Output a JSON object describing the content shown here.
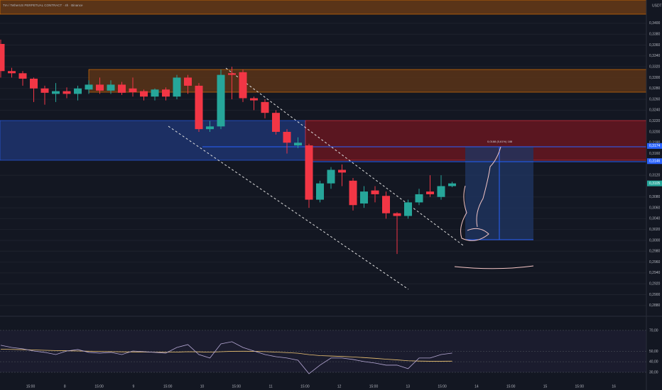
{
  "chart_data": {
    "type": "candlestick",
    "title": "TIA / TetherUS PERPETUAL CONTRACT · 4h · Binance",
    "currency": "USDT",
    "up_color": "#26a69a",
    "down_color": "#f23645",
    "open": [
      0.3362,
      0.3312,
      0.3308,
      0.3298,
      0.328,
      0.327,
      0.3275,
      0.327,
      0.3278,
      0.3287,
      0.3276,
      0.3287,
      0.328,
      0.3275,
      0.3265,
      0.3278,
      0.3265,
      0.33,
      0.3285,
      0.3205,
      0.321,
      0.3308,
      0.331,
      0.3262,
      0.3255,
      0.3235,
      0.32,
      0.3175,
      0.3175,
      0.3075,
      0.3105,
      0.313,
      0.311,
      0.3068,
      0.3092,
      0.3082,
      0.305,
      0.3045,
      0.307,
      0.309,
      0.308,
      0.31
    ],
    "high": [
      0.337,
      0.3318,
      0.3312,
      0.33,
      0.3285,
      0.329,
      0.3282,
      0.3285,
      0.3295,
      0.33,
      0.3295,
      0.3292,
      0.33,
      0.3278,
      0.328,
      0.3282,
      0.3305,
      0.3305,
      0.329,
      0.322,
      0.3315,
      0.332,
      0.3315,
      0.3265,
      0.326,
      0.324,
      0.3205,
      0.319,
      0.3178,
      0.311,
      0.3135,
      0.314,
      0.3115,
      0.31,
      0.31,
      0.309,
      0.3052,
      0.3075,
      0.3095,
      0.312,
      0.312,
      0.3108
    ],
    "low": [
      0.33,
      0.33,
      0.3285,
      0.3255,
      0.325,
      0.3255,
      0.3262,
      0.3258,
      0.327,
      0.327,
      0.327,
      0.3268,
      0.3265,
      0.3258,
      0.3258,
      0.3258,
      0.326,
      0.327,
      0.32,
      0.32,
      0.3205,
      0.326,
      0.3255,
      0.324,
      0.3225,
      0.3195,
      0.316,
      0.317,
      0.306,
      0.307,
      0.3095,
      0.31,
      0.3055,
      0.306,
      0.307,
      0.304,
      0.2975,
      0.304,
      0.3065,
      0.308,
      0.3075,
      0.3098
    ],
    "close": [
      0.3312,
      0.3308,
      0.3298,
      0.328,
      0.3272,
      0.3275,
      0.327,
      0.328,
      0.3287,
      0.3276,
      0.3287,
      0.3272,
      0.3273,
      0.3265,
      0.3278,
      0.3265,
      0.33,
      0.3285,
      0.3205,
      0.321,
      0.3305,
      0.3305,
      0.3262,
      0.3258,
      0.3235,
      0.32,
      0.318,
      0.318,
      0.3075,
      0.3105,
      0.313,
      0.3125,
      0.3065,
      0.309,
      0.3085,
      0.305,
      0.3045,
      0.307,
      0.3085,
      0.3085,
      0.31,
      0.3105
    ],
    "ylim": [
      0.2868,
      0.3443
    ],
    "yticks": [
      {
        "value": 0.288,
        "label": "0,2880"
      },
      {
        "value": 0.29,
        "label": "0,2900"
      },
      {
        "value": 0.292,
        "label": "0,2920"
      },
      {
        "value": 0.294,
        "label": "0,2940"
      },
      {
        "value": 0.296,
        "label": "0,2960"
      },
      {
        "value": 0.298,
        "label": "0,2980"
      },
      {
        "value": 0.3,
        "label": "0,3000"
      },
      {
        "value": 0.302,
        "label": "0,3020"
      },
      {
        "value": 0.304,
        "label": "0,3040"
      },
      {
        "value": 0.306,
        "label": "0,3060"
      },
      {
        "value": 0.308,
        "label": "0,3080"
      },
      {
        "value": 0.312,
        "label": "0,3120"
      },
      {
        "value": 0.316,
        "label": "0,3160"
      },
      {
        "value": 0.318,
        "label": "0,3180"
      },
      {
        "value": 0.32,
        "label": "0,3200"
      },
      {
        "value": 0.322,
        "label": "0,3220"
      },
      {
        "value": 0.324,
        "label": "0,3240"
      },
      {
        "value": 0.326,
        "label": "0,3260"
      },
      {
        "value": 0.328,
        "label": "0,3280"
      },
      {
        "value": 0.33,
        "label": "0,3300"
      },
      {
        "value": 0.332,
        "label": "0,3320"
      },
      {
        "value": 0.334,
        "label": "0,3340"
      },
      {
        "value": 0.336,
        "label": "0,3360"
      },
      {
        "value": 0.338,
        "label": "0,3380"
      },
      {
        "value": 0.34,
        "label": "0,3400"
      }
    ],
    "price_labels": [
      {
        "value": 0.3174,
        "label": "0,3174",
        "color": "#2962ff"
      },
      {
        "value": 0.3146,
        "label": "0,3146",
        "color": "#2962ff"
      },
      {
        "value": 0.3105,
        "label": "0,3105",
        "color": "#26a69a"
      }
    ],
    "position_label": "0,0188 (5,61%) 188",
    "time_labels": [
      "15:00",
      "8",
      "15:00",
      "9",
      "15:00",
      "10",
      "15:00",
      "11",
      "15:00",
      "12",
      "15:00",
      "13",
      "15:00",
      "14",
      "15:00",
      "15",
      "15:00",
      "16"
    ],
    "rsi": {
      "values": [
        55.8,
        53.7,
        52.4,
        50.3,
        49.0,
        46.9,
        50.3,
        51.7,
        49.0,
        48.3,
        49.0,
        46.9,
        50.3,
        49.7,
        49.0,
        48.3,
        53.7,
        56.4,
        46.9,
        43.6,
        57.1,
        59.2,
        53.7,
        50.3,
        46.9,
        44.9,
        43.6,
        41.5,
        28.6,
        36.8,
        43.6,
        43.6,
        42.2,
        40.2,
        38.8,
        36.8,
        36.8,
        33.4,
        43.6,
        43.6,
        46.9,
        48.3
      ],
      "signal": [
        52.0,
        51.8,
        51.6,
        51.3,
        51.0,
        50.7,
        50.5,
        50.3,
        50.1,
        49.9,
        49.7,
        49.5,
        49.4,
        49.3,
        49.2,
        49.1,
        49.3,
        49.6,
        49.5,
        49.2,
        49.6,
        50.0,
        50.1,
        50.0,
        49.7,
        49.3,
        48.8,
        48.2,
        46.8,
        45.9,
        45.5,
        45.1,
        44.6,
        44.0,
        43.3,
        42.5,
        41.8,
        41.0,
        40.7,
        40.5,
        40.5,
        40.6
      ],
      "color": "#b7a9d6",
      "signal_color": "#f0c674",
      "ylim": [
        19.8,
        80.8
      ],
      "yticks": [
        {
          "value": 70,
          "label": "70,00"
        },
        {
          "value": 50,
          "label": "50,00"
        },
        {
          "value": 40,
          "label": "40,00"
        },
        {
          "value": 30,
          "label": "30,00"
        }
      ]
    }
  }
}
